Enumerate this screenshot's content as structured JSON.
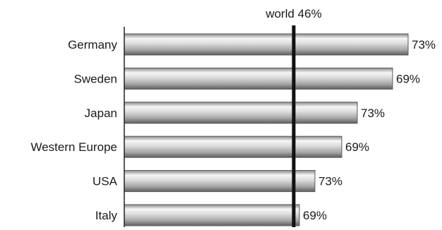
{
  "chart_data": {
    "type": "bar",
    "orientation": "horizontal",
    "categories": [
      "Germany",
      "Sweden",
      "Japan",
      "Western Europe",
      "USA",
      "Italy"
    ],
    "values": [
      73,
      69,
      73,
      69,
      73,
      69
    ],
    "value_labels": [
      "73%",
      "69%",
      "73%",
      "69%",
      "73%",
      "69%"
    ],
    "reference_line": {
      "label": "world 46%",
      "value": 46
    },
    "grid": false,
    "legend": "none",
    "colors": {
      "bar_light": "#f4f4f4",
      "bar_dark": "#6e6e6e",
      "bar_edge": "#5a5a5a",
      "axis": "#222222",
      "reference": "#111111"
    }
  }
}
